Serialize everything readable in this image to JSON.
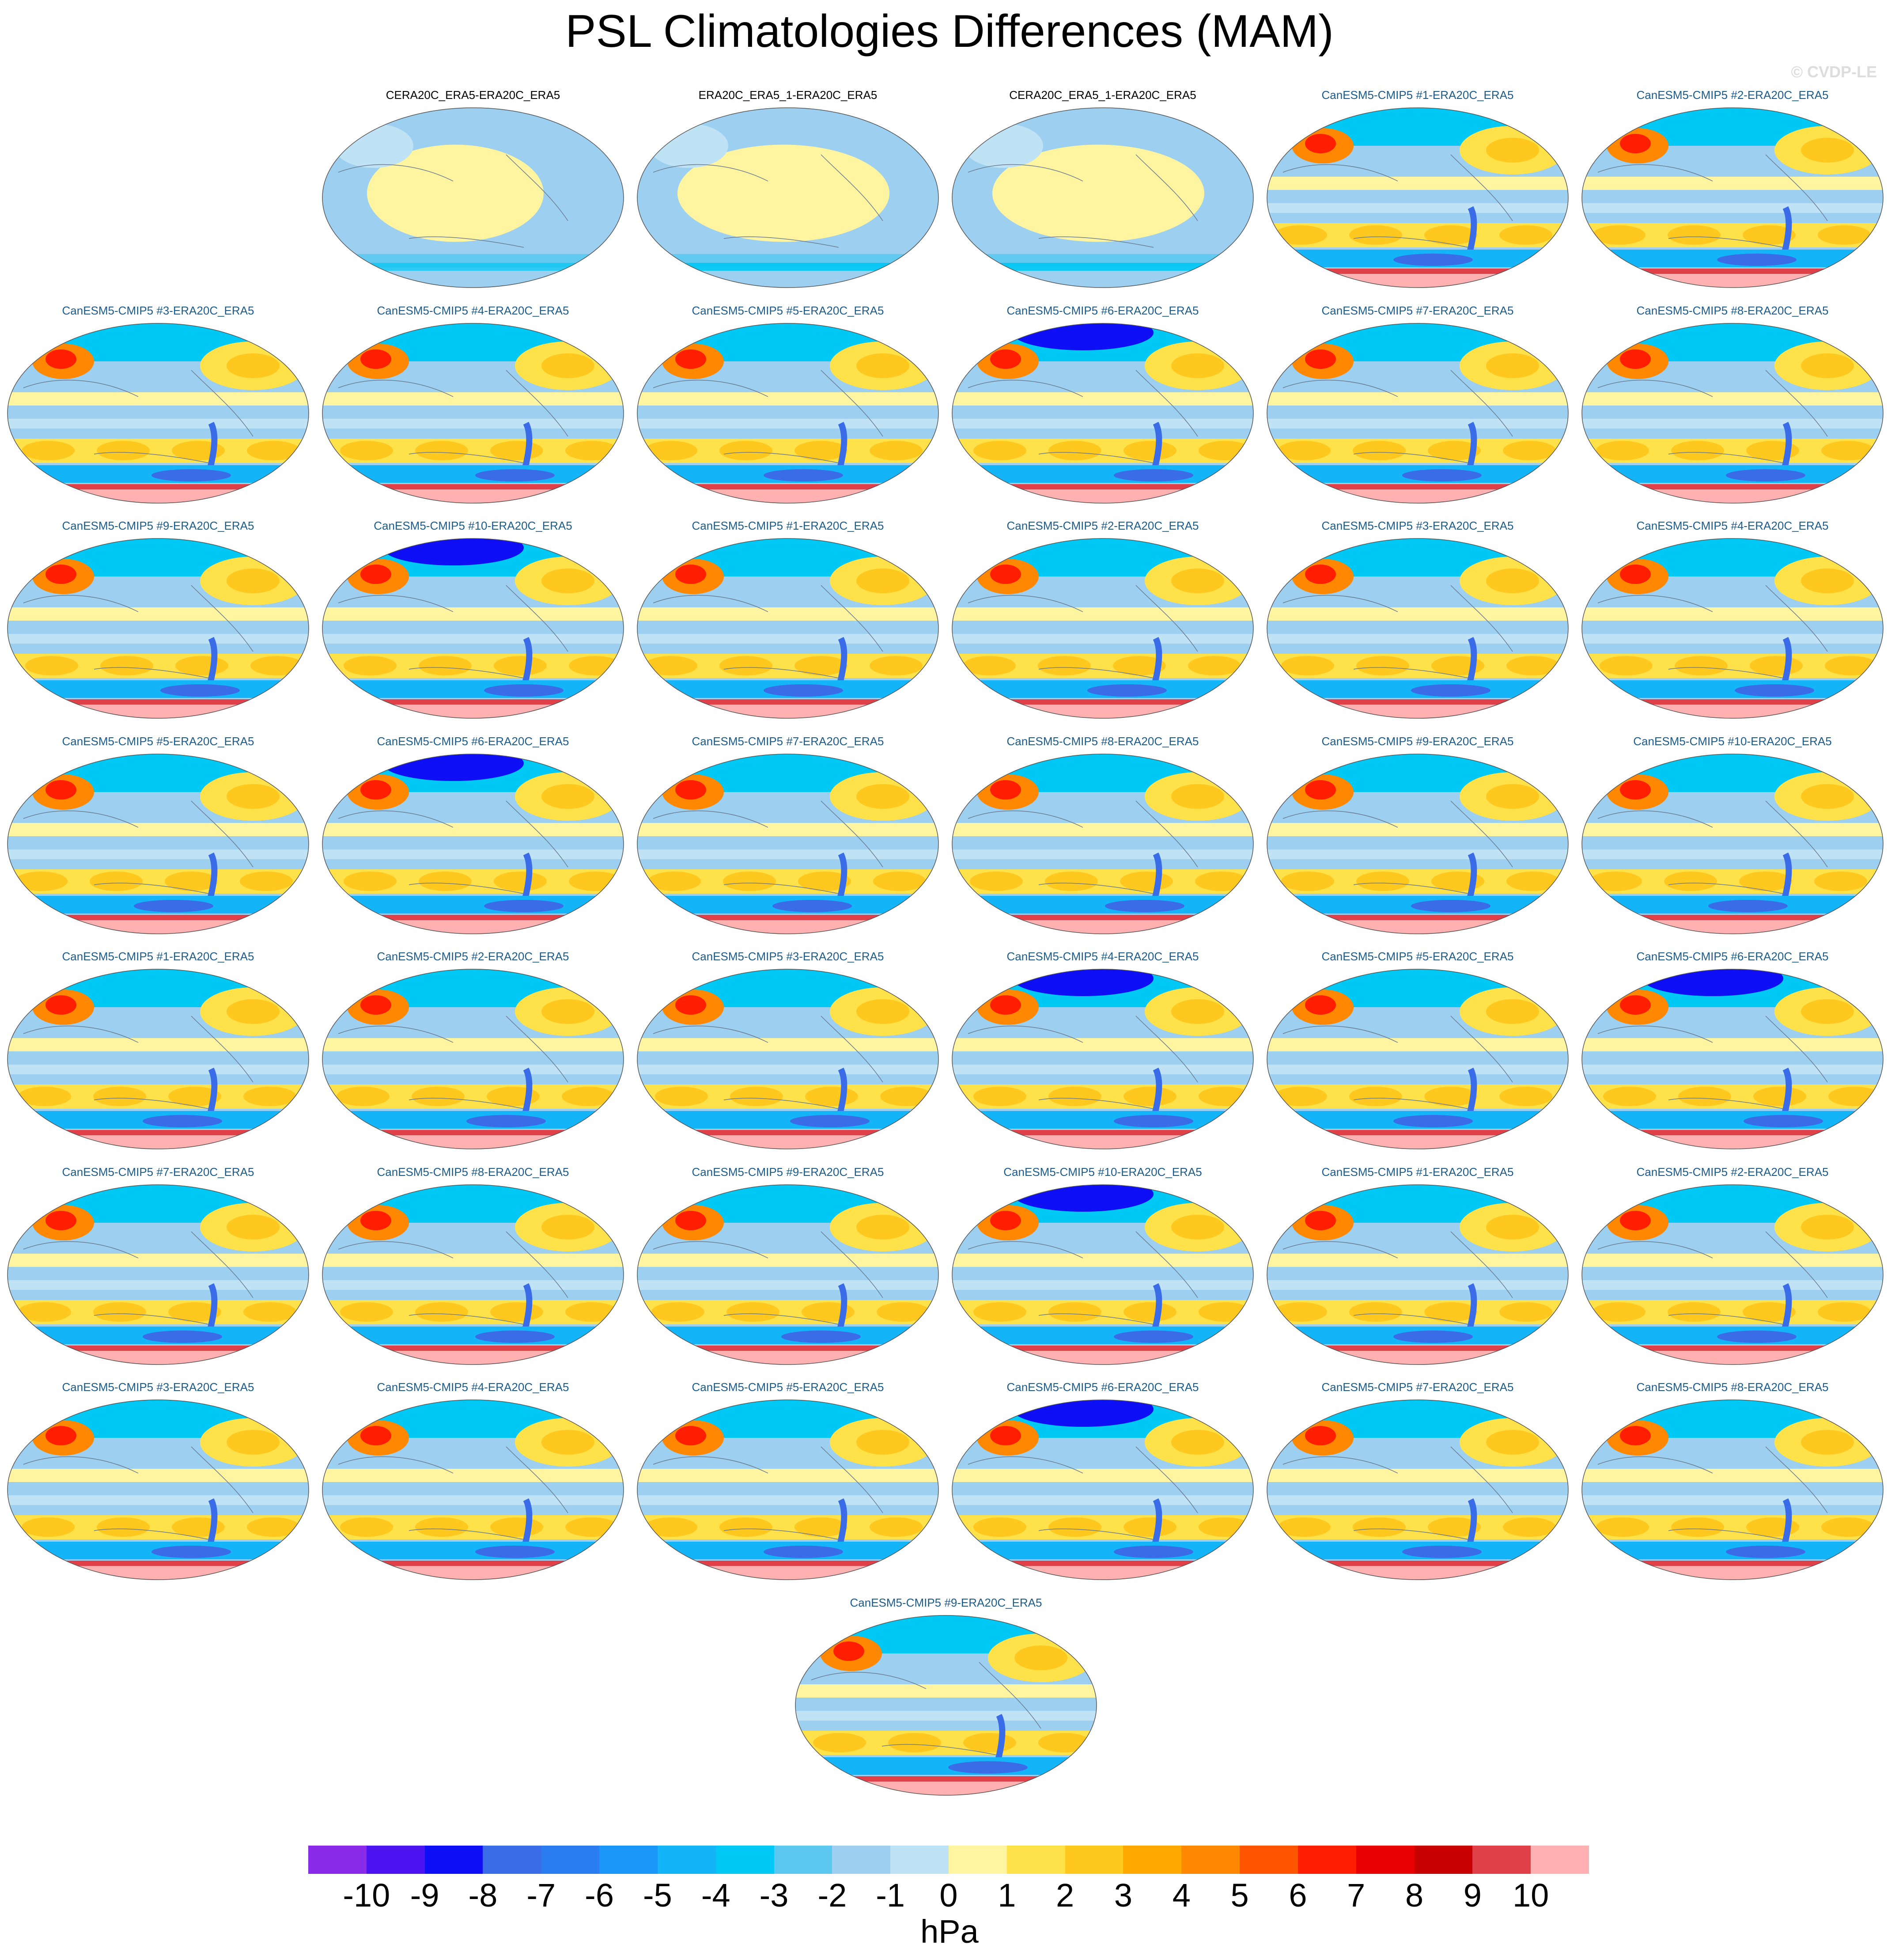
{
  "title": "PSL Climatologies Differences (MAM)",
  "watermark": "© CVDP-LE",
  "colorbar": {
    "units": "hPa",
    "labels": [
      "-10",
      "-9",
      "-8",
      "-7",
      "-6",
      "-5",
      "-4",
      "-3",
      "-2",
      "-1",
      "0",
      "1",
      "2",
      "3",
      "4",
      "5",
      "6",
      "7",
      "8",
      "9",
      "10"
    ],
    "colors": [
      "#8a2be8",
      "#4b14f0",
      "#0f0ff5",
      "#3a6ce8",
      "#2a7cf0",
      "#1a96f8",
      "#14b4f8",
      "#00c8f5",
      "#5cc8f0",
      "#9ccff0",
      "#bfe2f5",
      "#fff5a0",
      "#ffe14a",
      "#ffc81e",
      "#ffa800",
      "#ff8800",
      "#ff5500",
      "#ff1e00",
      "#e60000",
      "#c80000",
      "#e04048",
      "#ffb0b0"
    ]
  },
  "panels": [
    {
      "title": "CERA20C_ERA5-ERA20C_ERA5",
      "type": "obs",
      "variant": 0
    },
    {
      "title": "ERA20C_ERA5_1-ERA20C_ERA5",
      "type": "obs",
      "variant": 1
    },
    {
      "title": "CERA20C_ERA5_1-ERA20C_ERA5",
      "type": "obs",
      "variant": 1
    },
    {
      "title": "CanESM5-CMIP5 #1-ERA20C_ERA5",
      "type": "model",
      "variant": 0
    },
    {
      "title": "CanESM5-CMIP5 #2-ERA20C_ERA5",
      "type": "model",
      "variant": 1
    },
    {
      "title": "CanESM5-CMIP5 #3-ERA20C_ERA5",
      "type": "model",
      "variant": 2
    },
    {
      "title": "CanESM5-CMIP5 #4-ERA20C_ERA5",
      "type": "model",
      "variant": 3
    },
    {
      "title": "CanESM5-CMIP5 #5-ERA20C_ERA5",
      "type": "model",
      "variant": 0
    },
    {
      "title": "CanESM5-CMIP5 #6-ERA20C_ERA5",
      "type": "model",
      "variant": 4
    },
    {
      "title": "CanESM5-CMIP5 #7-ERA20C_ERA5",
      "type": "model",
      "variant": 1
    },
    {
      "title": "CanESM5-CMIP5 #8-ERA20C_ERA5",
      "type": "model",
      "variant": 2
    },
    {
      "title": "CanESM5-CMIP5 #9-ERA20C_ERA5",
      "type": "model",
      "variant": 3
    },
    {
      "title": "CanESM5-CMIP5 #10-ERA20C_ERA5",
      "type": "model",
      "variant": 4
    },
    {
      "title": "CanESM5-CMIP5 #1-ERA20C_ERA5",
      "type": "model",
      "variant": 0
    },
    {
      "title": "CanESM5-CMIP5 #2-ERA20C_ERA5",
      "type": "model",
      "variant": 1
    },
    {
      "title": "CanESM5-CMIP5 #3-ERA20C_ERA5",
      "type": "model",
      "variant": 2
    },
    {
      "title": "CanESM5-CMIP5 #4-ERA20C_ERA5",
      "type": "model",
      "variant": 3
    },
    {
      "title": "CanESM5-CMIP5 #5-ERA20C_ERA5",
      "type": "model",
      "variant": 0
    },
    {
      "title": "CanESM5-CMIP5 #6-ERA20C_ERA5",
      "type": "model",
      "variant": 4
    },
    {
      "title": "CanESM5-CMIP5 #7-ERA20C_ERA5",
      "type": "model",
      "variant": 1
    },
    {
      "title": "CanESM5-CMIP5 #8-ERA20C_ERA5",
      "type": "model",
      "variant": 3
    },
    {
      "title": "CanESM5-CMIP5 #9-ERA20C_ERA5",
      "type": "model",
      "variant": 2
    },
    {
      "title": "CanESM5-CMIP5 #10-ERA20C_ERA5",
      "type": "model",
      "variant": 0
    },
    {
      "title": "CanESM5-CMIP5 #1-ERA20C_ERA5",
      "type": "model",
      "variant": 1
    },
    {
      "title": "CanESM5-CMIP5 #2-ERA20C_ERA5",
      "type": "model",
      "variant": 2
    },
    {
      "title": "CanESM5-CMIP5 #3-ERA20C_ERA5",
      "type": "model",
      "variant": 3
    },
    {
      "title": "CanESM5-CMIP5 #4-ERA20C_ERA5",
      "type": "model",
      "variant": 4
    },
    {
      "title": "CanESM5-CMIP5 #5-ERA20C_ERA5",
      "type": "model",
      "variant": 0
    },
    {
      "title": "CanESM5-CMIP5 #6-ERA20C_ERA5",
      "type": "model",
      "variant": 4
    },
    {
      "title": "CanESM5-CMIP5 #7-ERA20C_ERA5",
      "type": "model",
      "variant": 1
    },
    {
      "title": "CanESM5-CMIP5 #8-ERA20C_ERA5",
      "type": "model",
      "variant": 3
    },
    {
      "title": "CanESM5-CMIP5 #9-ERA20C_ERA5",
      "type": "model",
      "variant": 2
    },
    {
      "title": "CanESM5-CMIP5 #10-ERA20C_ERA5",
      "type": "model",
      "variant": 4
    },
    {
      "title": "CanESM5-CMIP5 #1-ERA20C_ERA5",
      "type": "model",
      "variant": 0
    },
    {
      "title": "CanESM5-CMIP5 #2-ERA20C_ERA5",
      "type": "model",
      "variant": 1
    },
    {
      "title": "CanESM5-CMIP5 #3-ERA20C_ERA5",
      "type": "model",
      "variant": 2
    },
    {
      "title": "CanESM5-CMIP5 #4-ERA20C_ERA5",
      "type": "model",
      "variant": 3
    },
    {
      "title": "CanESM5-CMIP5 #5-ERA20C_ERA5",
      "type": "model",
      "variant": 0
    },
    {
      "title": "CanESM5-CMIP5 #6-ERA20C_ERA5",
      "type": "model",
      "variant": 4
    },
    {
      "title": "CanESM5-CMIP5 #7-ERA20C_ERA5",
      "type": "model",
      "variant": 1
    },
    {
      "title": "CanESM5-CMIP5 #8-ERA20C_ERA5",
      "type": "model",
      "variant": 2
    },
    {
      "title": "CanESM5-CMIP5 #9-ERA20C_ERA5",
      "type": "model",
      "variant": 3
    }
  ]
}
